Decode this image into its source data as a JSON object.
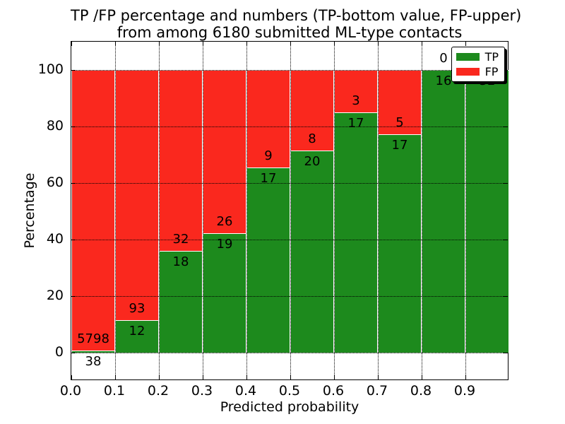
{
  "title": {
    "line1": "TP /FP percentage and numbers (TP-bottom value, FP-upper)",
    "line2": "from among 6180 submitted ML-type contacts"
  },
  "colors": {
    "tp_green": "#1d8a1d",
    "fp_red": "#fa281e",
    "text": "#000000",
    "background": "#ffffff"
  },
  "chart_data": {
    "type": "bar",
    "stacked": true,
    "normalized_to_percent": true,
    "title": "TP /FP percentage and numbers (TP-bottom value, FP-upper)\nfrom among 6180 submitted ML-type contacts",
    "xlabel": "Predicted probability",
    "ylabel": "Percentage",
    "xlim": [
      0.0,
      1.0
    ],
    "ylim": [
      -10,
      110
    ],
    "grid": true,
    "grid_style": "dotted",
    "bin_width": 0.1,
    "bin_starts": [
      0.0,
      0.1,
      0.2,
      0.3,
      0.4,
      0.5,
      0.6,
      0.7,
      0.8,
      0.9
    ],
    "xticks": [
      "0.0",
      "0.1",
      "0.2",
      "0.3",
      "0.4",
      "0.5",
      "0.6",
      "0.7",
      "0.8",
      "0.9"
    ],
    "yticks": [
      "0",
      "20",
      "40",
      "60",
      "80",
      "100"
    ],
    "series": [
      {
        "name": "TP",
        "color": "#1d8a1d",
        "position": "bottom",
        "counts": [
          38,
          12,
          18,
          19,
          17,
          20,
          17,
          17,
          16,
          32
        ]
      },
      {
        "name": "FP",
        "color": "#fa281e",
        "position": "top",
        "counts": [
          5798,
          93,
          32,
          26,
          9,
          8,
          3,
          5,
          0,
          0
        ]
      }
    ],
    "tp_percent_by_bin": [
      0.65,
      11.43,
      36.0,
      42.22,
      65.38,
      71.43,
      85.0,
      77.27,
      100.0,
      100.0
    ],
    "total_contacts": 6180,
    "legend": {
      "position": "upper right",
      "entries": [
        {
          "label": "TP",
          "color": "#1d8a1d"
        },
        {
          "label": "FP",
          "color": "#fa281e"
        }
      ]
    }
  }
}
